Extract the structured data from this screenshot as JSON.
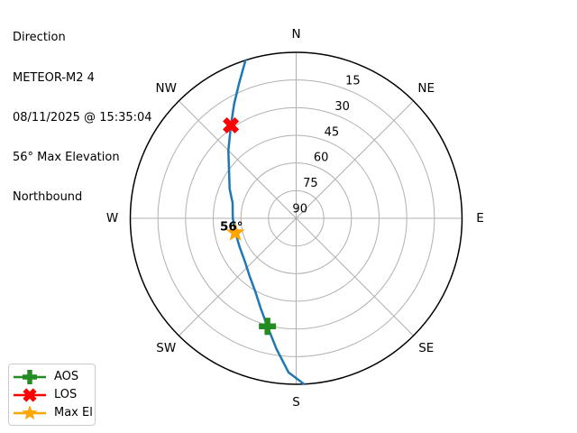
{
  "window": {
    "background": "#ffffff"
  },
  "header": {
    "title": "Direction",
    "satellite": "METEOR-M2 4",
    "datetime": "08/11/2025 @ 15:35:04",
    "max_elevation": "56° Max Elevation",
    "direction": "Northbound"
  },
  "chart_data": {
    "type": "line",
    "projection": "polar-sky",
    "title": "Direction / METEOR-M2 4 / 08/11/2025 @ 15:35:04 / 56° Max Elevation / Northbound",
    "compass_labels": [
      "N",
      "NE",
      "E",
      "SE",
      "S",
      "SW",
      "W",
      "NW"
    ],
    "compass_angles_deg": [
      0,
      45,
      90,
      135,
      180,
      225,
      270,
      315
    ],
    "elevation_rings_deg": [
      15,
      30,
      45,
      60,
      75
    ],
    "elevation_tick_values": [
      15,
      30,
      45,
      60,
      75,
      90
    ],
    "elevation_tick_labels": [
      "15",
      "30",
      "45",
      "60",
      "75",
      "90"
    ],
    "rlabel_azimuth_deg": 22.5,
    "elevation_range": {
      "horizon": 0,
      "zenith": 90
    },
    "grid": true,
    "track": {
      "name": "satellite-pass-track",
      "color": "#1f77b4",
      "points_az_el": [
        [
          177.3,
          0.0
        ],
        [
          182.8,
          6.3
        ],
        [
          188.6,
          18.4
        ],
        [
          194.9,
          29.4
        ],
        [
          201.5,
          37.5
        ],
        [
          209.3,
          44.6
        ],
        [
          219.0,
          49.8
        ],
        [
          229.8,
          53.6
        ],
        [
          243.0,
          55.6
        ],
        [
          256.7,
          56.1
        ],
        [
          270.0,
          55.6
        ],
        [
          283.6,
          54.5
        ],
        [
          294.0,
          50.5
        ],
        [
          304.9,
          45.6
        ],
        [
          315.0,
          38.0
        ],
        [
          324.9,
          28.4
        ],
        [
          331.5,
          19.5
        ],
        [
          336.9,
          10.8
        ],
        [
          342.2,
          0.0
        ]
      ]
    },
    "markers": [
      {
        "id": "aos",
        "label": "AOS",
        "shape": "plus",
        "color": "#228b22",
        "az": 194.9,
        "el": 29.4
      },
      {
        "id": "los",
        "label": "LOS",
        "shape": "x",
        "color": "#ff0000",
        "az": 324.9,
        "el": 28.4
      },
      {
        "id": "max-el",
        "label": "Max El",
        "shape": "star",
        "color": "#ffa500",
        "az": 256.7,
        "el": 56.1
      }
    ],
    "annotation": {
      "text": "56°",
      "az": 256.7,
      "el": 56.1
    },
    "legend_position": "lower left"
  },
  "legend": {
    "items": [
      {
        "label": "AOS",
        "shape": "plus",
        "color": "#228b22"
      },
      {
        "label": "LOS",
        "shape": "x",
        "color": "#ff0000"
      },
      {
        "label": "Max El",
        "shape": "star",
        "color": "#ffa500"
      }
    ]
  },
  "colors": {
    "track": "#1f77b4",
    "aos_marker": "#228b22",
    "los_marker": "#ff0000",
    "max_el_marker": "#ffa500",
    "grid": "#b0b0b0",
    "outline": "#000000",
    "text": "#000000",
    "legend_border": "#cccccc",
    "background": "#ffffff"
  }
}
